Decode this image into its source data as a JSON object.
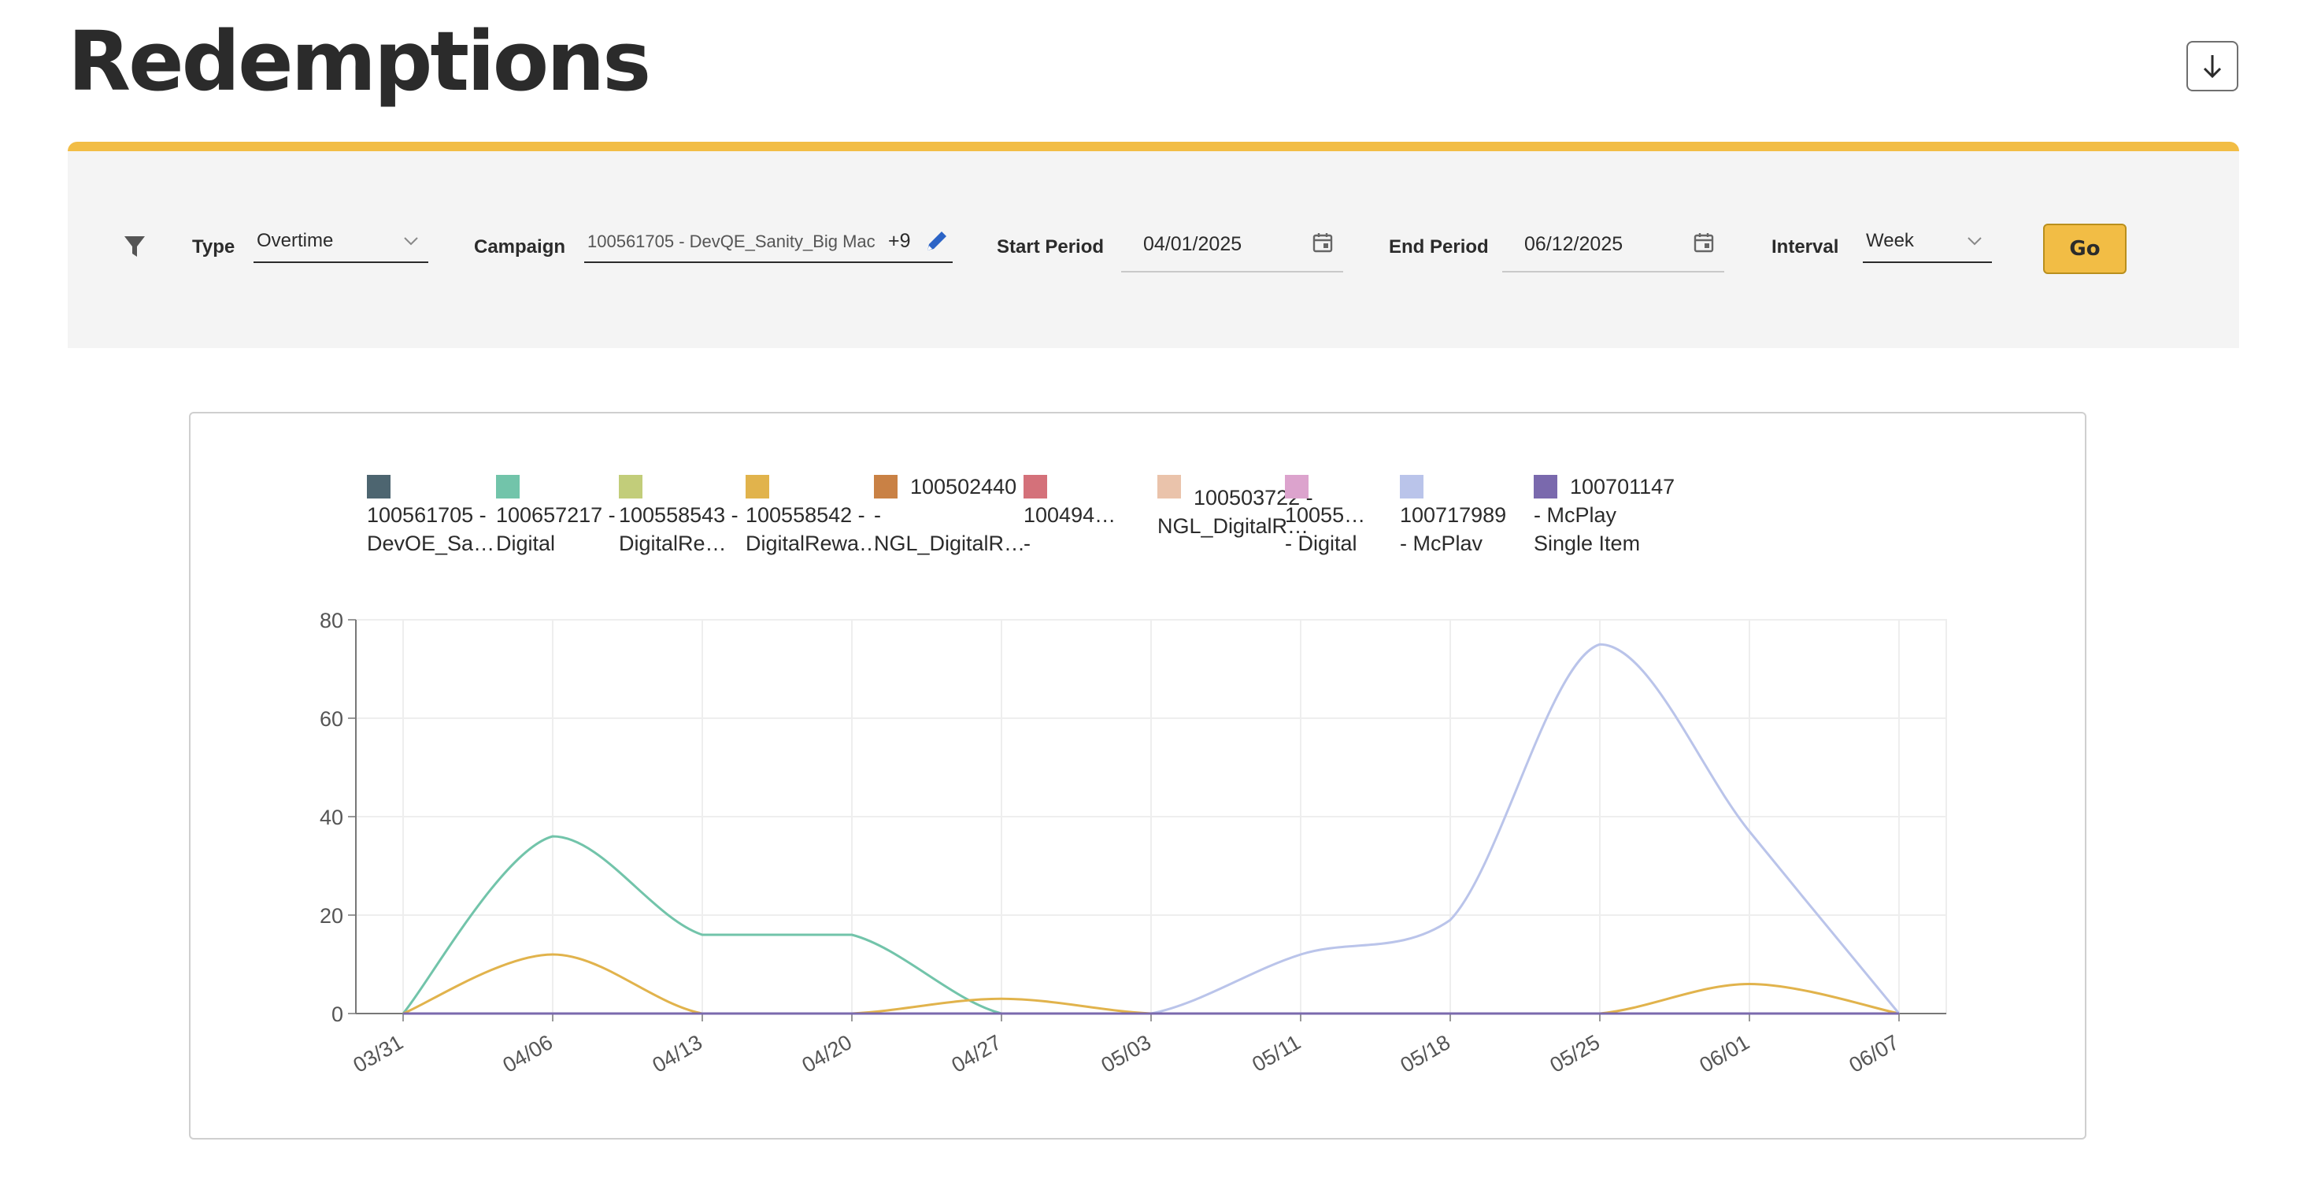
{
  "header": {
    "title": "Redemptions",
    "download_icon": "arrow-down-icon"
  },
  "filters": {
    "filter_icon": "funnel-icon",
    "type": {
      "label": "Type",
      "value": "Overtime"
    },
    "campaign": {
      "label": "Campaign",
      "value": "100561705 - DevQE_Sanity_Big Mac",
      "more": "+9",
      "edit_icon": "pencil-icon"
    },
    "start_period": {
      "label": "Start Period",
      "value": "04/01/2025"
    },
    "end_period": {
      "label": "End Period",
      "value": "06/12/2025"
    },
    "interval": {
      "label": "Interval",
      "value": "Week"
    },
    "go_label": "Go"
  },
  "colors": {
    "accent": "#f2bd45",
    "edit_icon": "#2b63c6"
  },
  "chart_data": {
    "type": "line",
    "categories": [
      "03/31",
      "04/06",
      "04/13",
      "04/20",
      "04/27",
      "05/03",
      "05/11",
      "05/18",
      "05/25",
      "06/01",
      "06/07"
    ],
    "ylim": [
      0,
      80
    ],
    "yticks": [
      0,
      20,
      40,
      60,
      80
    ],
    "grid": true,
    "legend_position": "top",
    "series": [
      {
        "name_lines": [
          "100561705 -",
          "DevOE_Sa…"
        ],
        "color": "#4d6570",
        "values": [
          0,
          0,
          0,
          0,
          0,
          0,
          0,
          0,
          0,
          0,
          0
        ]
      },
      {
        "name_lines": [
          "100657217 -",
          "Digital"
        ],
        "color": "#72c4aa",
        "values": [
          0,
          36,
          16,
          16,
          0,
          0,
          0,
          0,
          0,
          0,
          0
        ]
      },
      {
        "name_lines": [
          "100558543 -",
          "DigitalRe…"
        ],
        "color": "#c2cd7a",
        "values": [
          0,
          0,
          0,
          0,
          0,
          0,
          0,
          0,
          0,
          0,
          0
        ]
      },
      {
        "name_lines": [
          "100558542 -",
          "DigitalRewa…"
        ],
        "color": "#e1b34c",
        "values": [
          0,
          12,
          0,
          0,
          3,
          0,
          0,
          0,
          0,
          6,
          0
        ]
      },
      {
        "name_lines": [
          "100502440",
          "-",
          "NGL_DigitalR…"
        ],
        "color": "#c98145",
        "values": [
          0,
          0,
          0,
          0,
          0,
          0,
          0,
          0,
          0,
          0,
          0
        ]
      },
      {
        "name_lines": [
          "100494…",
          "-"
        ],
        "color": "#d4717a",
        "values": [
          0,
          0,
          0,
          0,
          0,
          0,
          0,
          0,
          0,
          0,
          0
        ]
      },
      {
        "name_lines": [
          "100503722 -",
          "NGL_DigitalR…"
        ],
        "color": "#eac3ab",
        "values": [
          0,
          0,
          0,
          0,
          0,
          0,
          0,
          0,
          0,
          0,
          0
        ]
      },
      {
        "name_lines": [
          "10055…",
          "- Digital"
        ],
        "color": "#dca3cd",
        "values": [
          0,
          0,
          0,
          0,
          0,
          0,
          0,
          0,
          0,
          0,
          0
        ]
      },
      {
        "name_lines": [
          "100717989",
          "- McPlav"
        ],
        "color": "#bac4ea",
        "values": [
          0,
          0,
          0,
          0,
          0,
          0,
          12,
          19,
          75,
          37,
          0
        ]
      },
      {
        "name_lines": [
          "100701147",
          "- McPlay",
          "Single Item"
        ],
        "color": "#7a69ad",
        "values": [
          0,
          0,
          0,
          0,
          0,
          0,
          0,
          0,
          0,
          0,
          0
        ]
      }
    ]
  }
}
